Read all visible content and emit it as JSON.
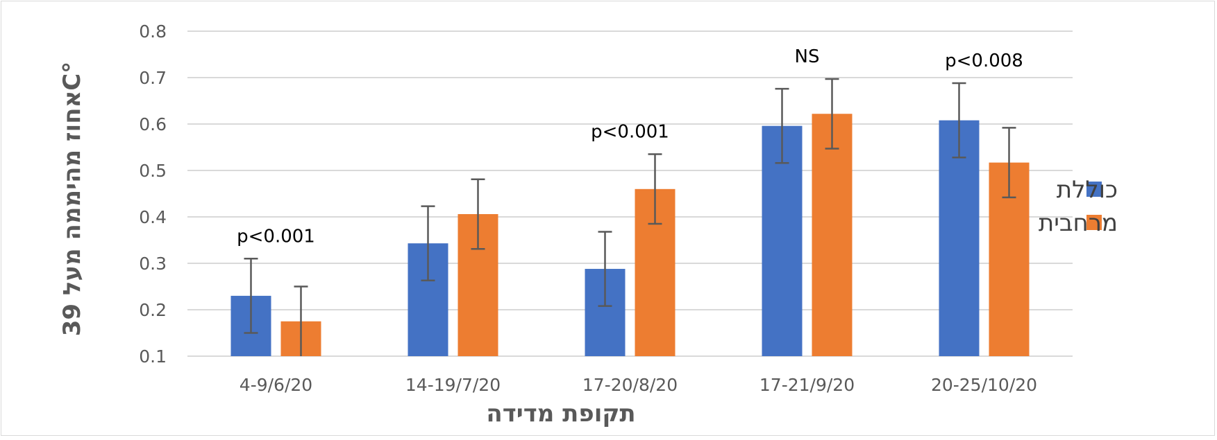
{
  "chart_data": {
    "type": "bar",
    "categories": [
      "4-9/6/20",
      "14-19/7/20",
      "17-20/8/20",
      "17-21/9/20",
      "20-25/10/20"
    ],
    "series": [
      {
        "name": "כוללת",
        "color": "#4472C4",
        "values": [
          0.23,
          0.343,
          0.288,
          0.596,
          0.608
        ],
        "error": [
          0.08,
          0.08,
          0.08,
          0.08,
          0.08
        ]
      },
      {
        "name": "מרחבית",
        "color": "#ED7D31",
        "values": [
          0.175,
          0.406,
          0.46,
          0.622,
          0.517
        ],
        "error": [
          0.075,
          0.075,
          0.075,
          0.075,
          0.075
        ]
      }
    ],
    "annotations": [
      "p<0.001",
      "",
      "p<0.001",
      "NS",
      "p<0.008"
    ],
    "xlabel": "תקופת מדידה",
    "ylabel": "אחוז מהיממה מעל 39C°",
    "ylim": [
      0.1,
      0.8
    ],
    "yticks": [
      "0.1",
      "0.2",
      "0.3",
      "0.4",
      "0.5",
      "0.6",
      "0.7",
      "0.8"
    ],
    "grid": true,
    "legend_position": "right",
    "gridline_color": "#d9d9d9",
    "errorbar_color": "#595959"
  }
}
